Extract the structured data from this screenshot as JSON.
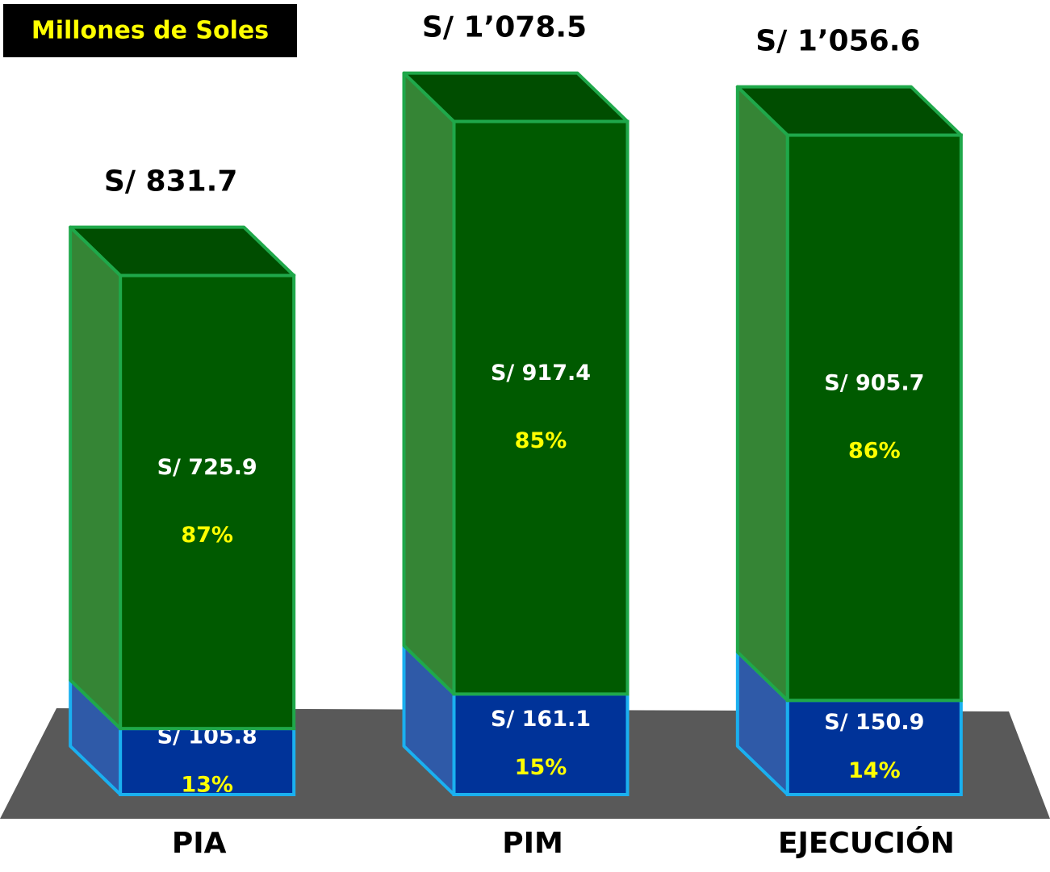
{
  "chart_data": {
    "type": "bar3d_stacked",
    "title": "Millones de Soles",
    "categories": [
      "PIA",
      "PIM",
      "EJECUCIÓN"
    ],
    "series": [
      {
        "color": "#003399",
        "side_color": "#2f5aa8",
        "top_color": "#1f4aa0",
        "edge_color": "#1ab0f0",
        "values": [
          105.8,
          161.1,
          150.9
        ],
        "value_labels": [
          "S/ 105.8",
          "S/ 161.1",
          "S/ 150.9"
        ],
        "shares": [
          13,
          15,
          14
        ],
        "share_labels": [
          "13%",
          "15%",
          "14%"
        ]
      },
      {
        "color": "#005a00",
        "side_color": "#358535",
        "top_color": "#004d00",
        "edge_color": "#1fa84a",
        "values": [
          725.9,
          917.4,
          905.7
        ],
        "value_labels": [
          "S/ 725.9",
          "S/ 917.4",
          "S/ 905.7"
        ],
        "shares": [
          87,
          85,
          86
        ],
        "share_labels": [
          "87%",
          "85%",
          "86%"
        ]
      }
    ],
    "totals": [
      831.7,
      1078.5,
      1056.6
    ],
    "total_labels": [
      "S/ 831.7",
      "S/  1’078.5",
      "S/ 1’056.6"
    ],
    "ylim": [
      0,
      1100
    ]
  }
}
